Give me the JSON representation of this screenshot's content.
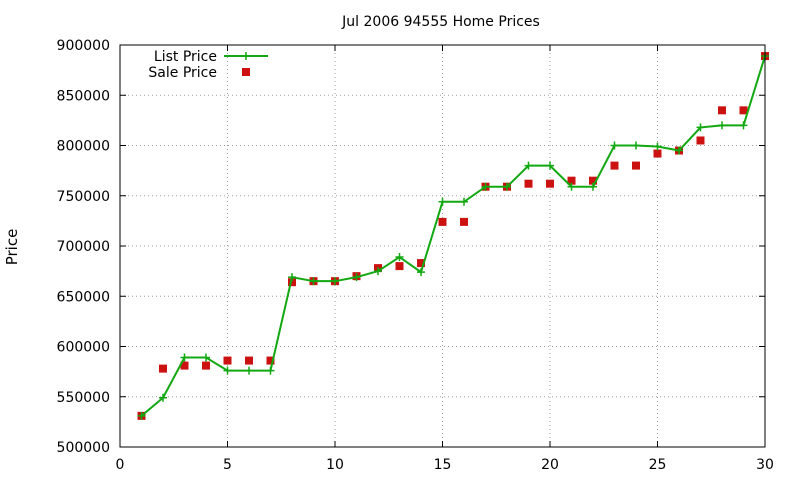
{
  "chart_data": {
    "type": "line",
    "title": "Jul 2006 94555 Home Prices",
    "xlabel": "",
    "ylabel": "Price",
    "xlim": [
      0,
      30
    ],
    "ylim": [
      500000,
      900000
    ],
    "xticks": [
      0,
      5,
      10,
      15,
      20,
      25,
      30
    ],
    "yticks": [
      500000,
      550000,
      600000,
      650000,
      700000,
      750000,
      800000,
      850000,
      900000
    ],
    "grid": true,
    "legend_position": "top-left",
    "series": [
      {
        "name": "List Price",
        "style": "line-plus",
        "color": "#11a811",
        "x": [
          1,
          2,
          3,
          4,
          5,
          6,
          7,
          8,
          9,
          10,
          11,
          12,
          13,
          14,
          15,
          16,
          17,
          18,
          19,
          20,
          21,
          22,
          23,
          24,
          25,
          26,
          27,
          28,
          29,
          30
        ],
        "y": [
          531000,
          549000,
          589000,
          589000,
          576000,
          576000,
          576000,
          669000,
          665000,
          665000,
          669000,
          675000,
          689000,
          674000,
          744000,
          744000,
          759000,
          759000,
          780000,
          780000,
          759000,
          759000,
          800000,
          800000,
          799000,
          795000,
          818000,
          820000,
          820000,
          889000
        ]
      },
      {
        "name": "Sale Price",
        "style": "points-square",
        "color": "#cc1111",
        "x": [
          1,
          2,
          3,
          4,
          5,
          6,
          7,
          8,
          9,
          10,
          11,
          12,
          13,
          14,
          15,
          16,
          17,
          18,
          19,
          20,
          21,
          22,
          23,
          24,
          25,
          26,
          27,
          28,
          29,
          30
        ],
        "y": [
          531000,
          578000,
          581000,
          581000,
          586000,
          586000,
          586000,
          664000,
          665000,
          665000,
          670000,
          678000,
          680000,
          683000,
          724000,
          724000,
          759000,
          759000,
          762000,
          762000,
          765000,
          765000,
          780000,
          780000,
          792000,
          795000,
          805000,
          835000,
          835000,
          889000
        ]
      }
    ]
  }
}
